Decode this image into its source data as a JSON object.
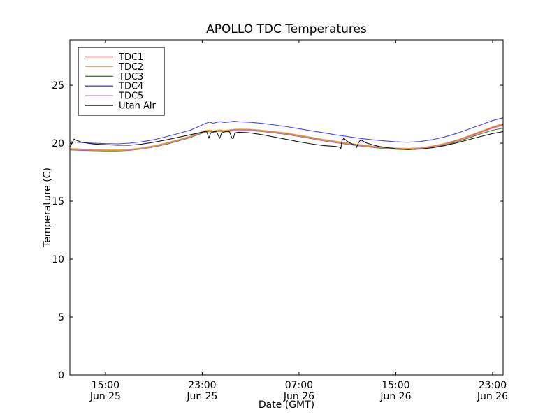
{
  "figure": {
    "background": "#ffffff",
    "axes_color": "#000000"
  },
  "chart_data": {
    "type": "line",
    "title": "APOLLO TDC Temperatures",
    "xlabel": "Date (GMT)",
    "ylabel": "Temperature (C)",
    "x_unit": "hours since Jun 25 00:00 GMT",
    "xlim": [
      12.06,
      47.87
    ],
    "ylim": [
      0,
      28.92
    ],
    "grid": false,
    "yticks": [
      0,
      5,
      10,
      15,
      20,
      25
    ],
    "xticks": [
      {
        "hour": 15,
        "time": "15:00",
        "date": "Jun 25"
      },
      {
        "hour": 23,
        "time": "23:00",
        "date": "Jun 25"
      },
      {
        "hour": 31,
        "time": "07:00",
        "date": "Jun 26"
      },
      {
        "hour": 39,
        "time": "15:00",
        "date": "Jun 26"
      },
      {
        "hour": 47,
        "time": "23:00",
        "date": "Jun 26"
      }
    ],
    "legend": {
      "position": "upper left",
      "border_color": "#222222"
    },
    "series": [
      {
        "name": "TDC1",
        "color": "#dd3e3e",
        "points": [
          [
            12.1,
            19.5
          ],
          [
            13,
            19.46
          ],
          [
            14,
            19.42
          ],
          [
            15,
            19.4
          ],
          [
            16,
            19.38
          ],
          [
            17,
            19.44
          ],
          [
            18,
            19.56
          ],
          [
            19,
            19.74
          ],
          [
            20,
            19.98
          ],
          [
            21,
            20.26
          ],
          [
            22,
            20.56
          ],
          [
            22.8,
            20.88
          ],
          [
            23.3,
            21.05
          ],
          [
            23.6,
            21.1
          ],
          [
            23.9,
            21.02
          ],
          [
            24.2,
            21.08
          ],
          [
            24.5,
            21.12
          ],
          [
            24.8,
            21.05
          ],
          [
            25.2,
            21.1
          ],
          [
            25.6,
            21.15
          ],
          [
            26.2,
            21.17
          ],
          [
            27,
            21.15
          ],
          [
            28,
            21.07
          ],
          [
            29,
            20.95
          ],
          [
            30,
            20.82
          ],
          [
            31,
            20.65
          ],
          [
            32,
            20.47
          ],
          [
            33,
            20.28
          ],
          [
            34,
            20.12
          ],
          [
            35,
            19.97
          ],
          [
            36,
            19.83
          ],
          [
            37,
            19.72
          ],
          [
            38,
            19.62
          ],
          [
            39,
            19.55
          ],
          [
            40,
            19.52
          ],
          [
            41,
            19.57
          ],
          [
            42,
            19.72
          ],
          [
            43,
            19.93
          ],
          [
            44,
            20.22
          ],
          [
            45,
            20.58
          ],
          [
            46,
            20.97
          ],
          [
            47,
            21.35
          ],
          [
            47.9,
            21.62
          ]
        ]
      },
      {
        "name": "TDC2",
        "color": "#ffa51e",
        "points": [
          [
            12.1,
            19.55
          ],
          [
            13,
            19.5
          ],
          [
            14,
            19.46
          ],
          [
            15,
            19.44
          ],
          [
            16,
            19.42
          ],
          [
            17,
            19.48
          ],
          [
            18,
            19.6
          ],
          [
            19,
            19.78
          ],
          [
            20,
            20.02
          ],
          [
            21,
            20.3
          ],
          [
            22,
            20.6
          ],
          [
            22.8,
            20.92
          ],
          [
            23.3,
            21.1
          ],
          [
            23.6,
            21.14
          ],
          [
            23.9,
            21.06
          ],
          [
            24.2,
            21.12
          ],
          [
            24.5,
            21.16
          ],
          [
            24.8,
            21.1
          ],
          [
            25.2,
            21.14
          ],
          [
            25.6,
            21.2
          ],
          [
            26.2,
            21.22
          ],
          [
            27,
            21.2
          ],
          [
            28,
            21.12
          ],
          [
            29,
            21.0
          ],
          [
            30,
            20.88
          ],
          [
            31,
            20.7
          ],
          [
            32,
            20.52
          ],
          [
            33,
            20.33
          ],
          [
            34,
            20.17
          ],
          [
            35,
            20.02
          ],
          [
            36,
            19.88
          ],
          [
            37,
            19.76
          ],
          [
            38,
            19.66
          ],
          [
            39,
            19.59
          ],
          [
            40,
            19.56
          ],
          [
            41,
            19.61
          ],
          [
            42,
            19.76
          ],
          [
            43,
            19.97
          ],
          [
            44,
            20.27
          ],
          [
            45,
            20.63
          ],
          [
            46,
            21.02
          ],
          [
            47,
            21.42
          ],
          [
            47.9,
            21.7
          ]
        ]
      },
      {
        "name": "TDC3",
        "color": "#2e8b2e",
        "points": [
          [
            12.1,
            19.42
          ],
          [
            13,
            19.38
          ],
          [
            14,
            19.35
          ],
          [
            15,
            19.33
          ],
          [
            16,
            19.32
          ],
          [
            17,
            19.38
          ],
          [
            18,
            19.5
          ],
          [
            19,
            19.68
          ],
          [
            20,
            19.9
          ],
          [
            21,
            20.18
          ],
          [
            22,
            20.48
          ],
          [
            22.8,
            20.8
          ],
          [
            23.3,
            20.97
          ],
          [
            23.6,
            21.02
          ],
          [
            23.9,
            20.94
          ],
          [
            24.2,
            21.0
          ],
          [
            24.5,
            21.04
          ],
          [
            24.8,
            20.97
          ],
          [
            25.2,
            21.02
          ],
          [
            25.6,
            21.07
          ],
          [
            26.2,
            21.1
          ],
          [
            27,
            21.08
          ],
          [
            28,
            21.0
          ],
          [
            29,
            20.88
          ],
          [
            30,
            20.75
          ],
          [
            31,
            20.58
          ],
          [
            32,
            20.4
          ],
          [
            33,
            20.21
          ],
          [
            34,
            20.05
          ],
          [
            35,
            19.9
          ],
          [
            36,
            19.76
          ],
          [
            37,
            19.64
          ],
          [
            38,
            19.54
          ],
          [
            39,
            19.47
          ],
          [
            40,
            19.44
          ],
          [
            41,
            19.49
          ],
          [
            42,
            19.63
          ],
          [
            43,
            19.83
          ],
          [
            44,
            20.1
          ],
          [
            45,
            20.44
          ],
          [
            46,
            20.8
          ],
          [
            47,
            21.12
          ],
          [
            47.9,
            21.3
          ]
        ]
      },
      {
        "name": "TDC4",
        "color": "#4444ee",
        "points": [
          [
            12.1,
            20.12
          ],
          [
            13,
            20.06
          ],
          [
            14,
            20.0
          ],
          [
            15,
            19.96
          ],
          [
            16,
            19.94
          ],
          [
            17,
            20.0
          ],
          [
            18,
            20.12
          ],
          [
            19,
            20.3
          ],
          [
            20,
            20.55
          ],
          [
            21,
            20.82
          ],
          [
            22,
            21.12
          ],
          [
            22.8,
            21.48
          ],
          [
            23.3,
            21.72
          ],
          [
            23.6,
            21.82
          ],
          [
            23.9,
            21.72
          ],
          [
            24.2,
            21.8
          ],
          [
            24.5,
            21.86
          ],
          [
            24.8,
            21.78
          ],
          [
            25.2,
            21.82
          ],
          [
            25.6,
            21.9
          ],
          [
            26.2,
            21.84
          ],
          [
            27,
            21.8
          ],
          [
            28,
            21.7
          ],
          [
            29,
            21.57
          ],
          [
            30,
            21.42
          ],
          [
            31,
            21.25
          ],
          [
            32,
            21.07
          ],
          [
            33,
            20.9
          ],
          [
            34,
            20.72
          ],
          [
            35,
            20.57
          ],
          [
            36,
            20.42
          ],
          [
            37,
            20.3
          ],
          [
            38,
            20.2
          ],
          [
            39,
            20.12
          ],
          [
            40,
            20.08
          ],
          [
            41,
            20.14
          ],
          [
            42,
            20.3
          ],
          [
            43,
            20.53
          ],
          [
            44,
            20.83
          ],
          [
            45,
            21.2
          ],
          [
            46,
            21.57
          ],
          [
            47,
            21.95
          ],
          [
            47.9,
            22.2
          ]
        ]
      },
      {
        "name": "TDC5",
        "color": "#cc86d8",
        "points": [
          [
            12.1,
            19.46
          ],
          [
            13,
            19.42
          ],
          [
            14,
            19.39
          ],
          [
            15,
            19.37
          ],
          [
            16,
            19.35
          ],
          [
            17,
            19.41
          ],
          [
            18,
            19.53
          ],
          [
            19,
            19.71
          ],
          [
            20,
            19.94
          ],
          [
            21,
            20.22
          ],
          [
            22,
            20.52
          ],
          [
            22.8,
            20.84
          ],
          [
            23.3,
            21.01
          ],
          [
            23.6,
            21.06
          ],
          [
            23.9,
            20.98
          ],
          [
            24.2,
            21.04
          ],
          [
            24.5,
            21.08
          ],
          [
            24.8,
            21.01
          ],
          [
            25.2,
            21.06
          ],
          [
            25.6,
            21.11
          ],
          [
            26.2,
            21.13
          ],
          [
            27,
            21.11
          ],
          [
            28,
            21.03
          ],
          [
            29,
            20.91
          ],
          [
            30,
            20.78
          ],
          [
            31,
            20.61
          ],
          [
            32,
            20.43
          ],
          [
            33,
            20.24
          ],
          [
            34,
            20.08
          ],
          [
            35,
            19.93
          ],
          [
            36,
            19.79
          ],
          [
            37,
            19.68
          ],
          [
            38,
            19.58
          ],
          [
            39,
            19.51
          ],
          [
            40,
            19.48
          ],
          [
            41,
            19.53
          ],
          [
            42,
            19.68
          ],
          [
            43,
            19.89
          ],
          [
            44,
            20.17
          ],
          [
            45,
            20.52
          ],
          [
            46,
            20.9
          ],
          [
            47,
            21.28
          ],
          [
            47.9,
            21.55
          ]
        ]
      },
      {
        "name": "Utah Air",
        "color": "#1a1a1a",
        "points": [
          [
            12.1,
            19.7
          ],
          [
            12.25,
            20.05
          ],
          [
            12.4,
            20.35
          ],
          [
            12.6,
            20.25
          ],
          [
            13,
            20.1
          ],
          [
            13.5,
            20.0
          ],
          [
            14,
            19.93
          ],
          [
            15,
            19.87
          ],
          [
            16,
            19.82
          ],
          [
            17,
            19.82
          ],
          [
            18,
            19.92
          ],
          [
            19,
            20.08
          ],
          [
            20,
            20.28
          ],
          [
            21,
            20.5
          ],
          [
            22,
            20.72
          ],
          [
            23,
            20.95
          ],
          [
            23.35,
            21.02
          ],
          [
            23.45,
            20.75
          ],
          [
            23.55,
            20.42
          ],
          [
            23.7,
            20.88
          ],
          [
            23.95,
            21.0
          ],
          [
            24.2,
            20.98
          ],
          [
            24.35,
            20.6
          ],
          [
            24.45,
            20.42
          ],
          [
            24.6,
            20.88
          ],
          [
            24.9,
            21.0
          ],
          [
            25.25,
            20.98
          ],
          [
            25.45,
            20.45
          ],
          [
            25.55,
            20.38
          ],
          [
            25.7,
            20.88
          ],
          [
            26,
            20.95
          ],
          [
            26.6,
            20.92
          ],
          [
            27,
            20.88
          ],
          [
            28,
            20.72
          ],
          [
            29,
            20.52
          ],
          [
            30,
            20.32
          ],
          [
            31,
            20.12
          ],
          [
            32,
            19.94
          ],
          [
            33,
            19.8
          ],
          [
            34,
            19.72
          ],
          [
            34.4,
            19.65
          ],
          [
            34.45,
            19.5
          ],
          [
            34.55,
            20.2
          ],
          [
            34.7,
            20.42
          ],
          [
            35,
            20.15
          ],
          [
            35.4,
            19.92
          ],
          [
            35.7,
            19.85
          ],
          [
            35.75,
            19.62
          ],
          [
            35.95,
            20.1
          ],
          [
            36.1,
            20.28
          ],
          [
            36.5,
            20.05
          ],
          [
            37,
            19.88
          ],
          [
            37.5,
            19.75
          ],
          [
            38,
            19.65
          ],
          [
            39,
            19.52
          ],
          [
            40,
            19.45
          ],
          [
            41,
            19.49
          ],
          [
            42,
            19.6
          ],
          [
            43,
            19.78
          ],
          [
            44,
            20.02
          ],
          [
            45,
            20.3
          ],
          [
            46,
            20.57
          ],
          [
            47,
            20.83
          ],
          [
            47.9,
            21.0
          ]
        ]
      }
    ]
  }
}
